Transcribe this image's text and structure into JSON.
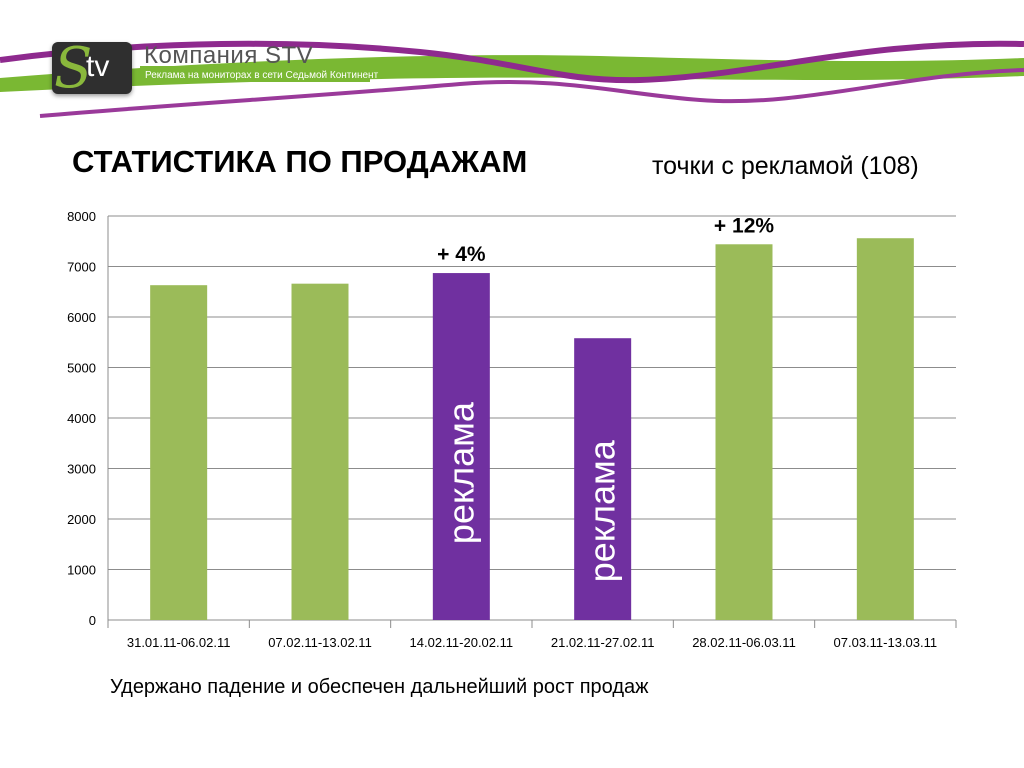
{
  "header": {
    "logo_mark": "Stv",
    "company_name": "Компания STV",
    "company_tagline": "Реклама на мониторах в сети Седьмой Континент"
  },
  "title": "СТАТИСТИКА ПО ПРОДАЖАМ",
  "subtitle": "точки с рекламой (108)",
  "caption": "Удержано падение и обеспечен дальнейший рост продаж",
  "colors": {
    "green": "#9bbb59",
    "purple": "#7030a0",
    "brand_purple": "#8e2a8e",
    "brand_green": "#7ab833"
  },
  "chart_data": {
    "type": "bar",
    "categories": [
      "31.01.11-06.02.11",
      "07.02.11-13.02.11",
      "14.02.11-20.02.11",
      "21.02.11-27.02.11",
      "28.02.11-06.03.11",
      "07.03.11-13.03.11"
    ],
    "values": [
      6630,
      6660,
      6870,
      5580,
      7440,
      7560
    ],
    "bar_colors": [
      "#9bbb59",
      "#9bbb59",
      "#7030a0",
      "#7030a0",
      "#9bbb59",
      "#9bbb59"
    ],
    "ylim": [
      0,
      8000
    ],
    "yticks": [
      0,
      1000,
      2000,
      3000,
      4000,
      5000,
      6000,
      7000,
      8000
    ],
    "grid": true,
    "annotations": [
      {
        "category_index": 2,
        "text": "+ 4%"
      },
      {
        "category_index": 4,
        "text": "+ 12%"
      }
    ],
    "bar_labels": [
      {
        "category_index": 2,
        "text": "реклама"
      },
      {
        "category_index": 3,
        "text": "реклама"
      }
    ]
  }
}
